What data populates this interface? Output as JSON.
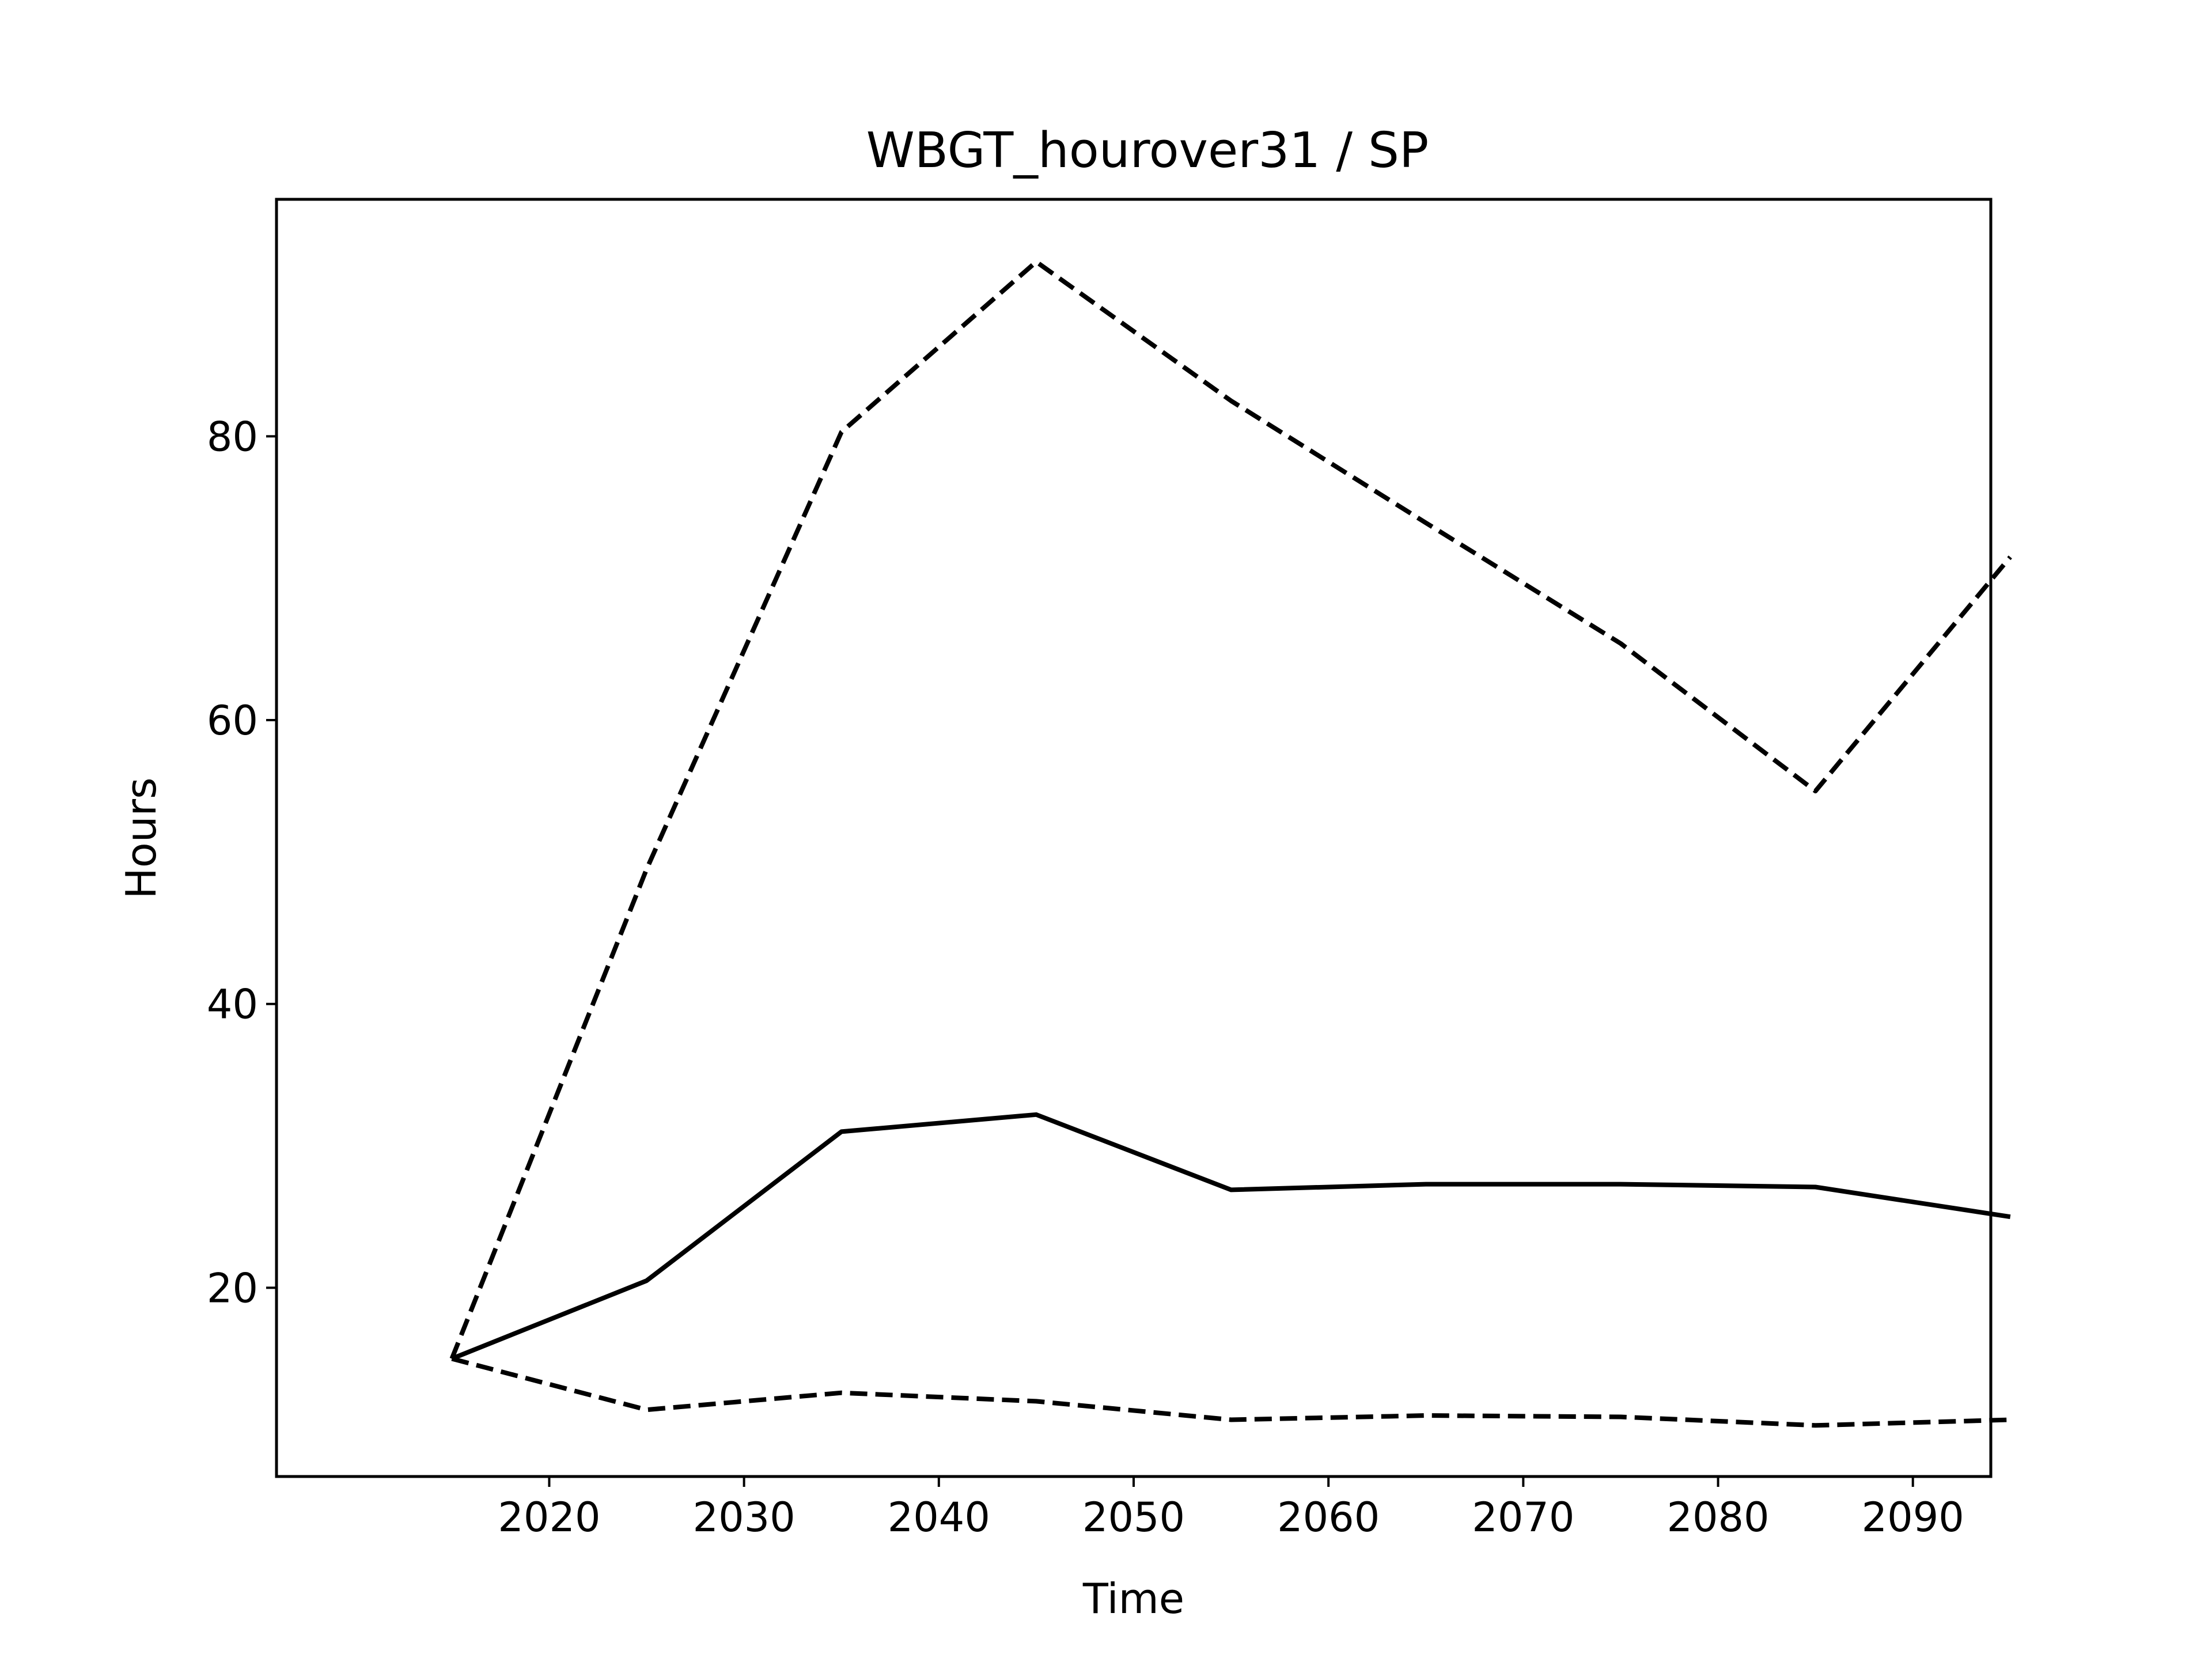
{
  "chart_data": {
    "type": "line",
    "title": "WBGT_hourover31 / SP",
    "xlabel": "Time",
    "ylabel": "Hours",
    "x": [
      2015,
      2025,
      2035,
      2045,
      2055,
      2065,
      2075,
      2085,
      2095
    ],
    "xlim": [
      2006,
      2094
    ],
    "ylim": [
      6.7,
      96.7
    ],
    "xticks": [
      2020,
      2030,
      2040,
      2050,
      2060,
      2070,
      2080,
      2090
    ],
    "yticks": [
      20,
      40,
      60,
      80
    ],
    "grid": false,
    "series": [
      {
        "style": "dashed",
        "color": "#000000",
        "values": [
          15.0,
          49.5,
          80.3,
          92.3,
          82.5,
          73.9,
          65.4,
          55.0,
          71.5
        ]
      },
      {
        "style": "solid",
        "color": "#000000",
        "values": [
          15.0,
          20.5,
          31.0,
          32.2,
          26.9,
          27.3,
          27.3,
          27.1,
          25.0
        ]
      },
      {
        "style": "dashed",
        "color": "#000000",
        "values": [
          15.0,
          11.4,
          12.6,
          12.0,
          10.7,
          11.0,
          10.9,
          10.3,
          10.7
        ]
      }
    ]
  }
}
